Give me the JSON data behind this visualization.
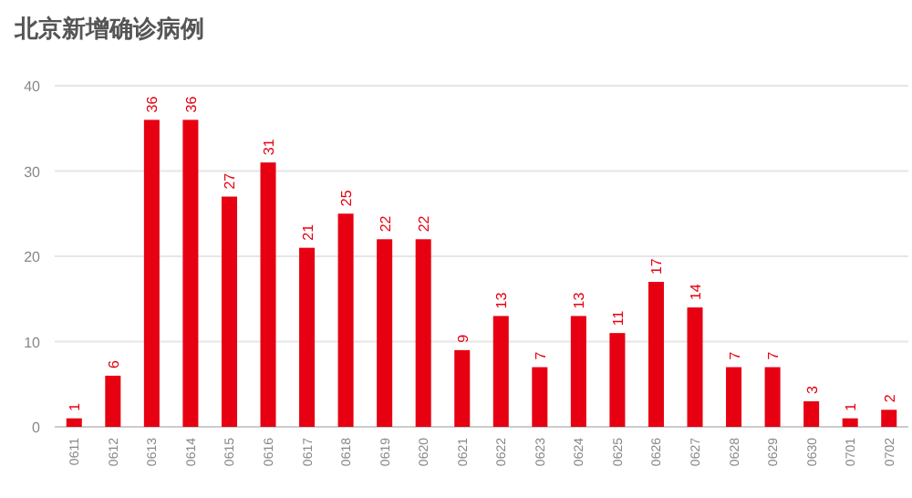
{
  "chart_data": {
    "type": "bar",
    "title": "北京新增确诊病例",
    "categories": [
      "0611",
      "0612",
      "0613",
      "0614",
      "0615",
      "0616",
      "0617",
      "0618",
      "0619",
      "0620",
      "0621",
      "0622",
      "0623",
      "0624",
      "0625",
      "0626",
      "0627",
      "0628",
      "0629",
      "0630",
      "0701",
      "0702"
    ],
    "values": [
      1,
      6,
      36,
      36,
      27,
      31,
      21,
      25,
      22,
      22,
      9,
      13,
      7,
      13,
      11,
      17,
      14,
      7,
      7,
      3,
      1,
      2
    ],
    "color": "#e60012",
    "ylim": [
      0,
      40
    ],
    "yticks": [
      0,
      10,
      20,
      30,
      40
    ],
    "grid": "y",
    "data_labels": true
  }
}
